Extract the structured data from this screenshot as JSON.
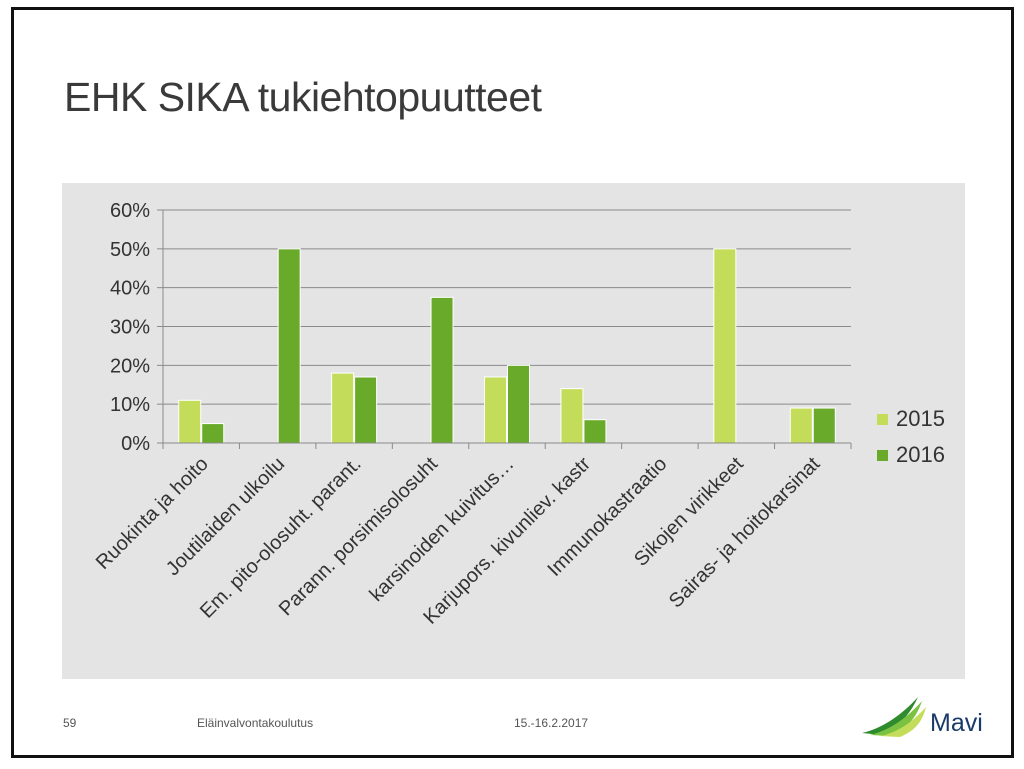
{
  "slide": {
    "title": "EHK SIKA tukiehtopuutteet",
    "page_number": "59",
    "footer_course": "Eläinvalvontakoulutus",
    "footer_date": "15.-16.2.2017",
    "logo_text": "Mavi"
  },
  "colors": {
    "series_2015": "#c3dc5a",
    "series_2016": "#6aaa2a",
    "panel_bg": "#e4e4e4",
    "grid": "#8a8a8a",
    "text": "#333333",
    "logo_text": "#1a3a6a"
  },
  "chart_data": {
    "type": "bar",
    "title": "",
    "xlabel": "",
    "ylabel": "",
    "ylim": [
      0,
      0.6
    ],
    "y_ticks": [
      "0%",
      "10%",
      "20%",
      "30%",
      "40%",
      "50%",
      "60%"
    ],
    "grid": true,
    "legend_position": "right",
    "categories": [
      "Ruokinta ja hoito",
      "Joutilaiden ulkoilu",
      "Em. pito-olosuht. parant.",
      "Parann. porsimisolosuht",
      "karsinoiden kuivitus…",
      "Karjupors. kivunliev. kastr",
      "Immunokastraatio",
      "Sikojen virikkeet",
      "Sairas- ja hoitokarsinat"
    ],
    "series": [
      {
        "name": "2015",
        "values": [
          0.11,
          0,
          0.18,
          0,
          0.17,
          0.14,
          0,
          0.5,
          0.09
        ]
      },
      {
        "name": "2016",
        "values": [
          0.05,
          0.5,
          0.17,
          0.375,
          0.2,
          0.06,
          0,
          0,
          0.09
        ]
      }
    ]
  }
}
